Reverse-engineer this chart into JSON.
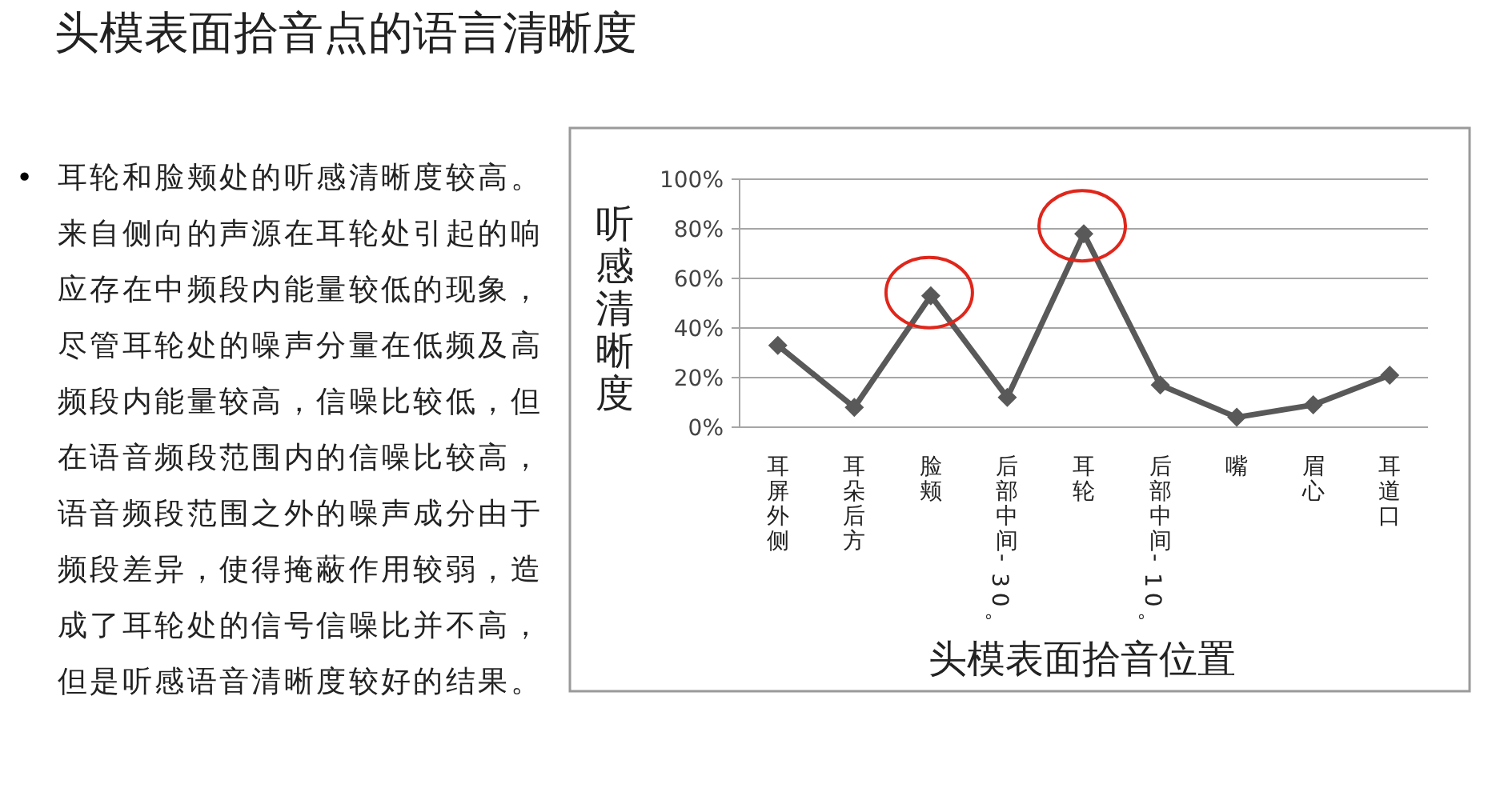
{
  "chart_data": {
    "type": "line",
    "title": "头模表面拾音点的语言清晰度",
    "xlabel": "头模表面拾音位置",
    "ylabel": "听感清晰度",
    "categories": [
      "耳屏外侧",
      "耳朵后方",
      "脸颊",
      "后部中间-30。",
      "耳轮",
      "后部中间-10。",
      "嘴",
      "眉心",
      "耳道口"
    ],
    "series": [
      {
        "color": "#595959",
        "values": [
          33,
          8,
          53,
          12,
          78,
          17,
          4,
          9,
          21
        ]
      }
    ],
    "ylim": [
      0,
      100
    ],
    "yticks": [
      {
        "value": 0,
        "label": "0%"
      },
      {
        "value": 20,
        "label": "20%"
      },
      {
        "value": 40,
        "label": "40%"
      },
      {
        "value": 60,
        "label": "60%"
      },
      {
        "value": 80,
        "label": "80%"
      },
      {
        "value": 100,
        "label": "100%"
      }
    ],
    "grid": "y",
    "marker": "diamond",
    "annotations": [
      "•",
      "耳轮和脸颊处的听感清晰度较高。来自侧向的声源在耳轮处引起的响应存在中频段内能量较低的现象，尽管耳轮处的噪声分量在低频及高频段内能量较高，信噪比较低，但在语音频段范围内的信噪比较高，语音频段范围之外的噪声成分由于频段差异，使得掩蔽作用较弱，造成了耳轮处的信号信噪比并不高，但是听感语音清晰度较好的结果。"
    ]
  }
}
